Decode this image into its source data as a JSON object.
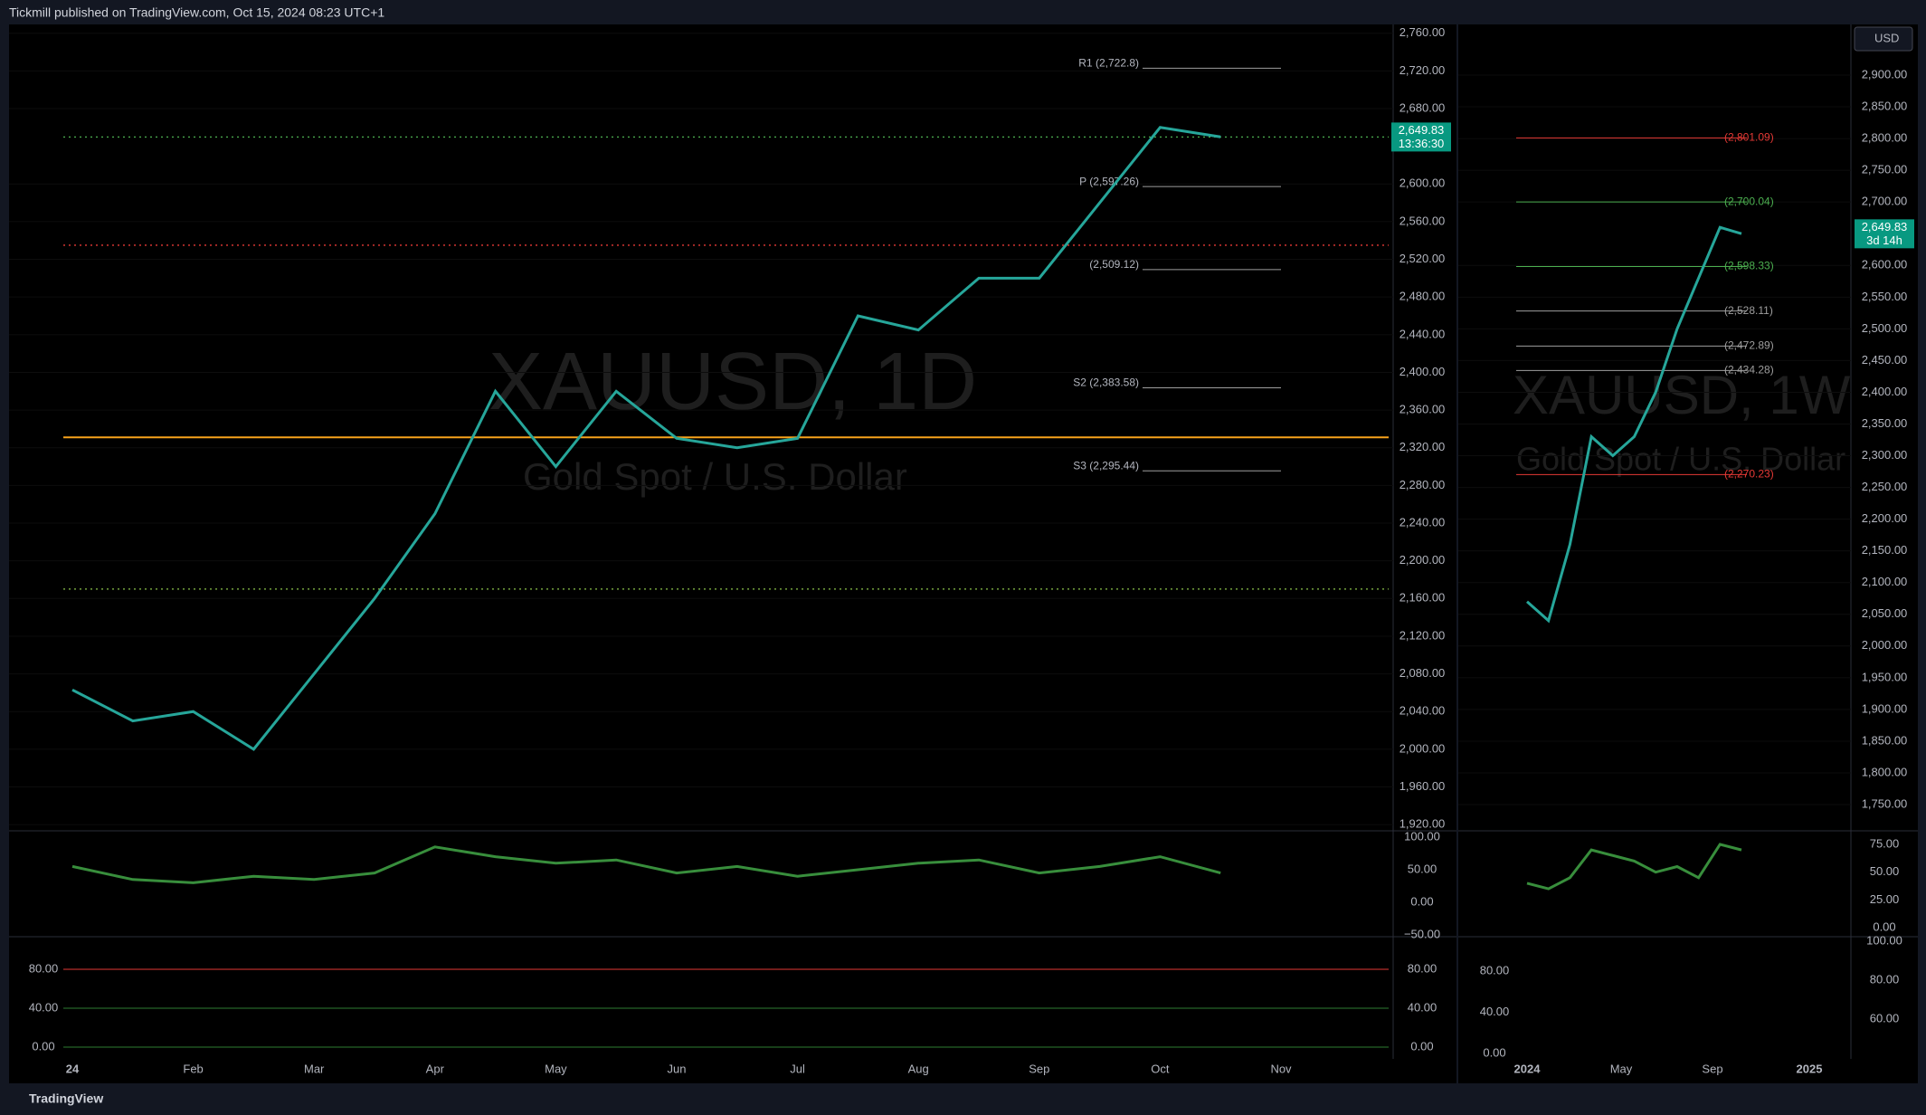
{
  "header": {
    "publisher": "Tickmill published on TradingView.com, Oct 15, 2024 08:23 UTC+1"
  },
  "footer": {
    "brand": "TradingView"
  },
  "left": {
    "watermark": {
      "symbol": "XAUUSD, 1D",
      "description": "Gold Spot / U.S. Dollar"
    },
    "yticks": [
      {
        "value": 2760,
        "label": "2,760.00"
      },
      {
        "value": 2720,
        "label": "2,720.00"
      },
      {
        "value": 2680,
        "label": "2,680.00"
      },
      {
        "value": 2600,
        "label": "2,600.00"
      },
      {
        "value": 2560,
        "label": "2,560.00"
      },
      {
        "value": 2520,
        "label": "2,520.00"
      },
      {
        "value": 2480,
        "label": "2,480.00"
      },
      {
        "value": 2440,
        "label": "2,440.00"
      },
      {
        "value": 2400,
        "label": "2,400.00"
      },
      {
        "value": 2360,
        "label": "2,360.00"
      },
      {
        "value": 2320,
        "label": "2,320.00"
      },
      {
        "value": 2280,
        "label": "2,280.00"
      },
      {
        "value": 2240,
        "label": "2,240.00"
      },
      {
        "value": 2200,
        "label": "2,200.00"
      },
      {
        "value": 2160,
        "label": "2,160.00"
      },
      {
        "value": 2120,
        "label": "2,120.00"
      },
      {
        "value": 2080,
        "label": "2,080.00"
      },
      {
        "value": 2040,
        "label": "2,040.00"
      },
      {
        "value": 2000,
        "label": "2,000.00"
      },
      {
        "value": 1960,
        "label": "1,960.00"
      },
      {
        "value": 1920,
        "label": "1,920.00"
      }
    ],
    "last_price": {
      "value": 2649.83,
      "label": "2,649.83",
      "countdown": "13:36:30"
    },
    "pivots": [
      {
        "value": 2722.8,
        "label": "R1 (2,722.8)"
      },
      {
        "value": 2597.26,
        "label": "P (2,597.26)"
      },
      {
        "value": 2509.12,
        "label": "(2,509.12)"
      },
      {
        "value": 2383.58,
        "label": "S2 (2,383.58)"
      },
      {
        "value": 2295.44,
        "label": "S3 (2,295.44)"
      }
    ],
    "levels": [
      {
        "value": 2331,
        "color": "#f7a21b"
      },
      {
        "value": 2535,
        "color": "#e53935"
      },
      {
        "value": 2170,
        "color": "#8bc34a"
      },
      {
        "value": 2649.83,
        "color": "#4caf50"
      }
    ],
    "months": [
      "24",
      "Feb",
      "Mar",
      "Apr",
      "May",
      "Jun",
      "Jul",
      "Aug",
      "Sep",
      "Oct",
      "Nov"
    ],
    "closes": [
      2063,
      2030,
      2040,
      2000,
      2080,
      2160,
      2250,
      2380,
      2300,
      2380,
      2330,
      2320,
      2330,
      2460,
      2445,
      2500,
      2500,
      2580,
      2660,
      2650
    ],
    "rsi": [
      55,
      35,
      30,
      40,
      35,
      45,
      85,
      70,
      60,
      65,
      45,
      55,
      40,
      50,
      60,
      65,
      45,
      55,
      70,
      45
    ],
    "rsi_ticks": [
      {
        "value": 100,
        "label": "100.00"
      },
      {
        "value": 50,
        "label": "50.00"
      },
      {
        "value": 0,
        "label": "0.00"
      },
      {
        "value": -50,
        "label": "−50.00"
      }
    ],
    "stoch_ticks": [
      {
        "value": 80,
        "label": "80.00"
      },
      {
        "value": 40,
        "label": "40.00"
      },
      {
        "value": 0,
        "label": "0.00"
      }
    ]
  },
  "right": {
    "watermark": {
      "symbol": "XAUUSD, 1W",
      "description": "Gold Spot / U.S. Dollar"
    },
    "currency": "USD",
    "yticks": [
      {
        "value": 2900,
        "label": "2,900.00"
      },
      {
        "value": 2850,
        "label": "2,850.00"
      },
      {
        "value": 2800,
        "label": "2,800.00"
      },
      {
        "value": 2750,
        "label": "2,750.00"
      },
      {
        "value": 2700,
        "label": "2,700.00"
      },
      {
        "value": 2600,
        "label": "2,600.00"
      },
      {
        "value": 2550,
        "label": "2,550.00"
      },
      {
        "value": 2500,
        "label": "2,500.00"
      },
      {
        "value": 2450,
        "label": "2,450.00"
      },
      {
        "value": 2400,
        "label": "2,400.00"
      },
      {
        "value": 2350,
        "label": "2,350.00"
      },
      {
        "value": 2300,
        "label": "2,300.00"
      },
      {
        "value": 2250,
        "label": "2,250.00"
      },
      {
        "value": 2200,
        "label": "2,200.00"
      },
      {
        "value": 2150,
        "label": "2,150.00"
      },
      {
        "value": 2100,
        "label": "2,100.00"
      },
      {
        "value": 2050,
        "label": "2,050.00"
      },
      {
        "value": 2000,
        "label": "2,000.00"
      },
      {
        "value": 1950,
        "label": "1,950.00"
      },
      {
        "value": 1900,
        "label": "1,900.00"
      },
      {
        "value": 1850,
        "label": "1,850.00"
      },
      {
        "value": 1800,
        "label": "1,800.00"
      },
      {
        "value": 1750,
        "label": "1,750.00"
      }
    ],
    "last_price": {
      "value": 2649.83,
      "label": "2,649.83",
      "countdown": "3d 14h"
    },
    "pivots": [
      {
        "value": 2801.09,
        "label": "(2,801.09)",
        "color": "#e53935"
      },
      {
        "value": 2700.04,
        "label": "(2,700.04)",
        "color": "#4caf50"
      },
      {
        "value": 2598.33,
        "label": "(2,598.33)",
        "color": "#4caf50"
      },
      {
        "value": 2528.11,
        "label": "(2,528.11)",
        "color": "#9e9e9e"
      },
      {
        "value": 2472.89,
        "label": "(2,472.89)",
        "color": "#9e9e9e"
      },
      {
        "value": 2434.28,
        "label": "(2,434.28)",
        "color": "#9e9e9e"
      },
      {
        "value": 2270.23,
        "label": "(2,270.23)",
        "color": "#e53935"
      }
    ],
    "periods": [
      "2024",
      "May",
      "Sep",
      "2025"
    ],
    "closes": [
      2070,
      2040,
      2160,
      2330,
      2300,
      2330,
      2400,
      2500,
      2580,
      2660,
      2650
    ],
    "rsi": [
      40,
      35,
      45,
      70,
      65,
      60,
      50,
      55,
      45,
      75,
      70
    ],
    "rsi_ticks": [
      {
        "value": 75,
        "label": "75.00"
      },
      {
        "value": 50,
        "label": "50.00"
      },
      {
        "value": 25,
        "label": "25.00"
      },
      {
        "value": 0,
        "label": "0.00"
      }
    ],
    "stoch_ticks_right": [
      {
        "value": 100,
        "label": "100.00"
      },
      {
        "value": 80,
        "label": "80.00"
      },
      {
        "value": 60,
        "label": "60.00"
      }
    ],
    "stoch_ticks_left": [
      {
        "value": 80,
        "label": "80.00"
      },
      {
        "value": 40,
        "label": "40.00"
      },
      {
        "value": 0,
        "label": "0.00"
      }
    ]
  }
}
